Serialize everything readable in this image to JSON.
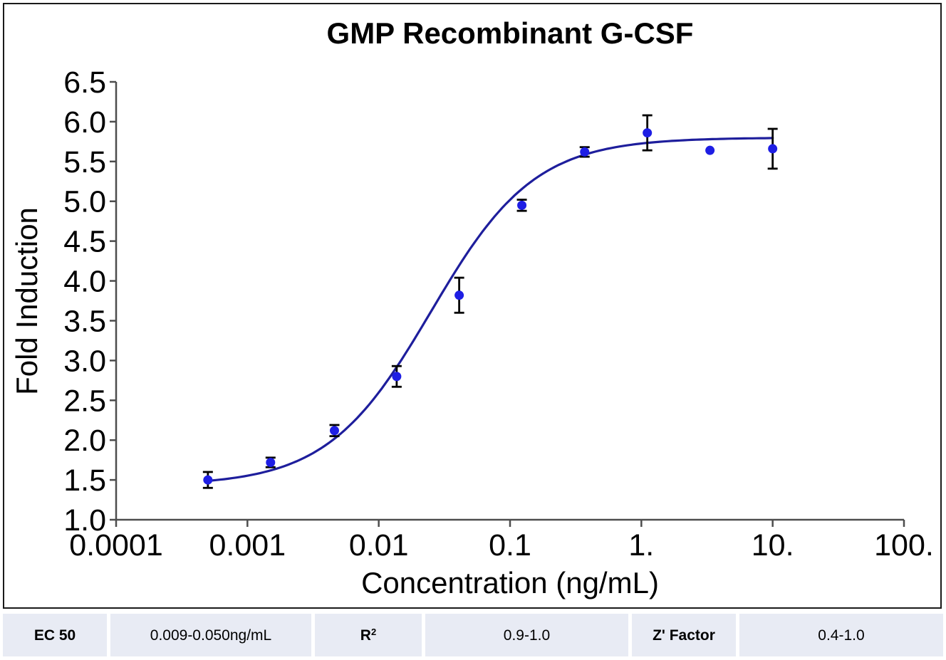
{
  "chart_data": {
    "type": "scatter",
    "title": "GMP Recombinant G-CSF",
    "xlabel": "Concentration (ng/mL)",
    "ylabel": "Fold Induction",
    "x_scale": "log",
    "xlim": [
      0.0001,
      100
    ],
    "ylim": [
      1.0,
      6.5
    ],
    "grid": false,
    "legend": "none",
    "x_ticks": [
      {
        "value": 0.0001,
        "label": "0.0001"
      },
      {
        "value": 0.001,
        "label": "0.001"
      },
      {
        "value": 0.01,
        "label": "0.01"
      },
      {
        "value": 0.1,
        "label": "0.1"
      },
      {
        "value": 1,
        "label": "1."
      },
      {
        "value": 10,
        "label": "10."
      },
      {
        "value": 100,
        "label": "100."
      }
    ],
    "y_ticks": [
      {
        "value": 1.0,
        "label": "1.0"
      },
      {
        "value": 1.5,
        "label": "1.5"
      },
      {
        "value": 2.0,
        "label": "2.0"
      },
      {
        "value": 2.5,
        "label": "2.5"
      },
      {
        "value": 3.0,
        "label": "3.0"
      },
      {
        "value": 3.5,
        "label": "3.5"
      },
      {
        "value": 4.0,
        "label": "4.0"
      },
      {
        "value": 4.5,
        "label": "4.5"
      },
      {
        "value": 5.0,
        "label": "5.0"
      },
      {
        "value": 5.5,
        "label": "5.5"
      },
      {
        "value": 6.0,
        "label": "6.0"
      },
      {
        "value": 6.5,
        "label": "6.5"
      }
    ],
    "series": [
      {
        "marker": "circle",
        "marker_color": "#1e1ee4",
        "points": [
          {
            "x": 0.0005,
            "y": 1.5,
            "err": 0.1
          },
          {
            "x": 0.0015,
            "y": 1.72,
            "err": 0.06
          },
          {
            "x": 0.0046,
            "y": 2.12,
            "err": 0.07
          },
          {
            "x": 0.0137,
            "y": 2.8,
            "err": 0.13
          },
          {
            "x": 0.041,
            "y": 3.82,
            "err": 0.22
          },
          {
            "x": 0.123,
            "y": 4.95,
            "err": 0.07
          },
          {
            "x": 0.37,
            "y": 5.62,
            "err": 0.06
          },
          {
            "x": 1.11,
            "y": 5.86,
            "err": 0.22
          },
          {
            "x": 3.33,
            "y": 5.64,
            "err": 0
          },
          {
            "x": 10.0,
            "y": 5.66,
            "err": 0.25
          }
        ]
      }
    ],
    "fit_curve": {
      "model": "4PL",
      "bottom": 1.43,
      "top": 5.8,
      "ec50": 0.025,
      "hill": 1.1,
      "x_start": 0.0005,
      "x_end": 10.0,
      "color": "#1e1e9c"
    },
    "colors": {
      "axis": "#4d4d4d",
      "tick_label": "#000000",
      "error_bar": "#000000",
      "marker": "#1e1ee4",
      "curve": "#1e1e9c",
      "table_cell_bg": "#e8ebf4",
      "frame_border": "#1a1a1a"
    }
  },
  "table": {
    "cells": [
      {
        "text": "EC 50"
      },
      {
        "text": "0.009-0.050ng/mL"
      },
      {
        "text": "R",
        "sup": "2"
      },
      {
        "text": "0.9-1.0"
      },
      {
        "text": "Z' Factor"
      },
      {
        "text": "0.4-1.0"
      }
    ]
  }
}
